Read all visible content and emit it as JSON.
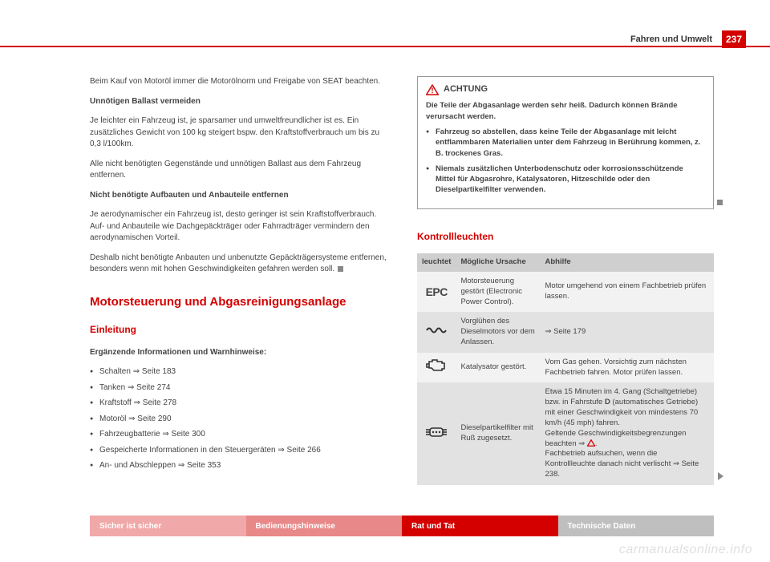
{
  "header": {
    "title": "Fahren und Umwelt",
    "page": "237"
  },
  "left": {
    "p1": "Beim Kauf von Motoröl immer die Motorölnorm und Freigabe von SEAT beachten.",
    "h_ballast": "Unnötigen Ballast vermeiden",
    "p2": "Je leichter ein Fahrzeug ist, je sparsamer und umweltfreundlicher ist es. Ein zusätzliches Gewicht von 100 kg steigert bspw. den Kraftstoffverbrauch um bis zu 0,3 l/100km.",
    "p3": "Alle nicht benötigten Gegenstände und unnötigen Ballast aus dem Fahrzeug entfernen.",
    "h_aufbau": "Nicht benötigte Aufbauten und Anbauteile entfernen",
    "p4": "Je aerodynamischer ein Fahrzeug ist, desto geringer ist sein Kraftstoffverbrauch. Auf- und Anbauteile wie Dachgepäckträger oder Fahrradträger vermindern den aerodynamischen Vorteil.",
    "p5": "Deshalb nicht benötigte Anbauten und unbenutzte Gepäckträgersysteme entfernen, besonders wenn mit hohen Geschwindigkeiten gefahren werden soll.",
    "h1": "Motorsteuerung und Abgasreinigungsanlage",
    "h2": "Einleitung",
    "h_ergaenz": "Ergänzende Informationen und Warnhinweise:",
    "bullets": [
      "Schalten ⇒ Seite 183",
      "Tanken ⇒ Seite 274",
      "Kraftstoff ⇒ Seite 278",
      "Motoröl ⇒ Seite 290",
      "Fahrzeugbatterie ⇒ Seite 300",
      "Gespeicherte Informationen in den Steuergeräten ⇒ Seite 266",
      "An- und Abschleppen ⇒ Seite 353"
    ]
  },
  "right": {
    "achtung_title": "ACHTUNG",
    "achtung_p1": "Die Teile der Abgasanlage werden sehr heiß. Dadurch können Brände verursacht werden.",
    "achtung_b1": "Fahrzeug so abstellen, dass keine Teile der Abgasanlage mit leicht entflammbaren Materialien unter dem Fahrzeug in Berührung kommen, z. B. trockenes Gras.",
    "achtung_b2": "Niemals zusätzlichen Unterbodenschutz oder korrosionsschützende Mittel für Abgasrohre, Katalysatoren, Hitzeschilde oder den Dieselpartikelfilter verwenden.",
    "h2": "Kontrollleuchten",
    "th1": "leuchtet",
    "th2": "Mögliche Ursache",
    "th3": "Abhilfe",
    "rows": [
      {
        "icon": "EPC",
        "cause": "Motorsteuerung gestört (Electronic Power Control).",
        "fix": "Motor umgehend von einem Fachbetrieb prüfen lassen."
      },
      {
        "icon": "coil",
        "cause": "Vorglühen des Dieselmotors vor dem Anlassen.",
        "fix": "⇒ Seite 179"
      },
      {
        "icon": "engine",
        "cause": "Katalysator gestört.",
        "fix": "Vom Gas gehen. Vorsichtig zum nächsten Fachbetrieb fahren. Motor prüfen lassen."
      },
      {
        "icon": "dpf",
        "cause": "Dieselpartikelfilter mit Ruß zugesetzt.",
        "fix": "Etwa 15 Minuten im 4. Gang (Schaltgetriebe) bzw. in Fahrstufe D (automatisches Getriebe) mit einer Geschwindigkeit von mindestens 70 km/h (45 mph) fahren.\nGeltende Geschwindigkeitsbegrenzungen beachten ⇒ ⚠.\nFachbetrieb aufsuchen, wenn die Kontrollleuchte danach nicht verlischt ⇒ Seite 238."
      }
    ]
  },
  "footer": {
    "t1": "Sicher ist sicher",
    "t2": "Bedienungshinweise",
    "t3": "Rat und Tat",
    "t4": "Technische Daten"
  },
  "watermark": "carmanualsonline.info",
  "colors": {
    "accent": "#d40000",
    "grey_header": "#cfcfcf",
    "row_a": "#f2f2f2",
    "row_b": "#e2e2e2"
  }
}
